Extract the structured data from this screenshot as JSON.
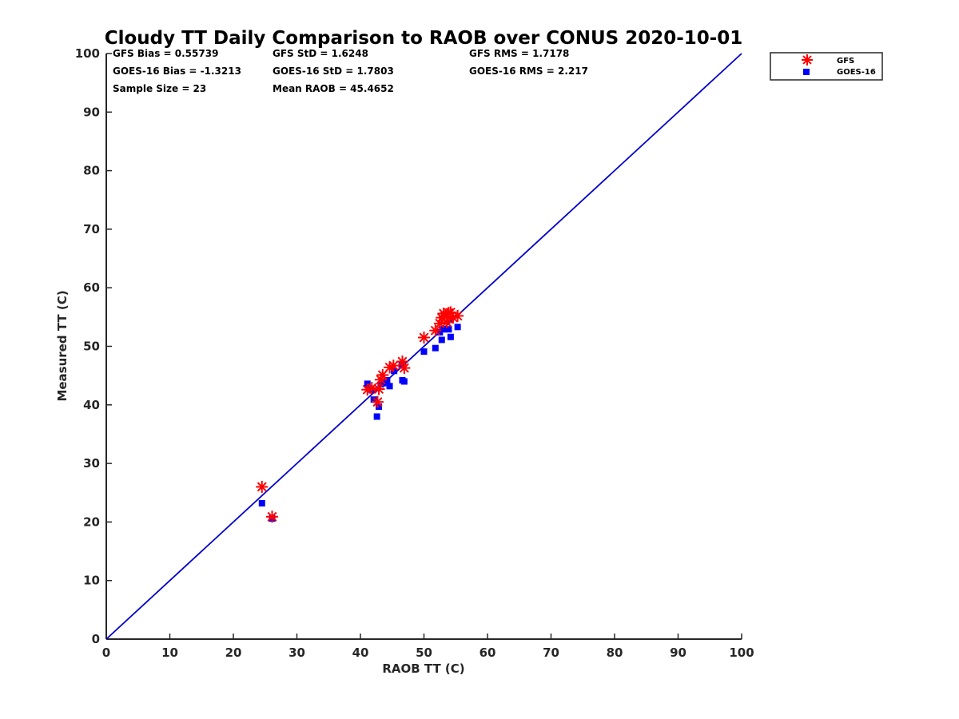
{
  "chart_data": {
    "type": "scatter",
    "title": "Cloudy TT Daily Comparison to RAOB over CONUS 2020-10-01",
    "xlabel": "RAOB TT (C)",
    "ylabel": "Measured TT (C)",
    "xlim": [
      0,
      100
    ],
    "ylim": [
      0,
      100
    ],
    "x_ticks": [
      "0",
      "10",
      "20",
      "30",
      "40",
      "50",
      "60",
      "70",
      "80",
      "90",
      "100"
    ],
    "y_ticks": [
      "0",
      "10",
      "20",
      "30",
      "40",
      "50",
      "60",
      "70",
      "80",
      "90",
      "100"
    ],
    "grid": false,
    "legend_position": "top-right outside",
    "reference_line": {
      "x": [
        0,
        100
      ],
      "y": [
        0,
        100
      ],
      "color": "#0000cc"
    },
    "stats": {
      "gfs_bias": "GFS Bias = 0.55739",
      "gfs_std": "GFS StD = 1.6248",
      "gfs_rms": "GFS RMS = 1.7178",
      "goes_bias": "GOES-16 Bias = -1.3213",
      "goes_std": "GOES-16 StD = 1.7803",
      "goes_rms": "GOES-16 RMS = 2.217",
      "sample_size": "Sample Size = 23",
      "mean_raob": "Mean RAOB = 45.4652"
    },
    "series": [
      {
        "name": "GFS",
        "marker": "asterisk",
        "color": "#ff0000",
        "x": [
          24.5,
          26.1,
          41.1,
          42.7,
          42.9,
          43.2,
          43.5,
          44.6,
          45.2,
          46.6,
          46.9,
          50.0,
          51.8,
          52.5,
          52.8,
          53.1,
          53.3,
          53.6,
          53.9,
          54.2,
          54.6,
          55.3,
          41.8
        ],
        "y": [
          26.0,
          20.9,
          42.6,
          40.5,
          42.7,
          44.3,
          45.1,
          46.4,
          46.7,
          47.4,
          46.3,
          51.5,
          52.7,
          53.9,
          54.9,
          55.6,
          55.1,
          54.1,
          55.7,
          55.8,
          54.9,
          55.2,
          42.9
        ]
      },
      {
        "name": "GOES-16",
        "marker": "square",
        "color": "#0000ff",
        "x": [
          24.5,
          26.1,
          41.1,
          41.8,
          42.1,
          42.6,
          42.9,
          43.2,
          43.6,
          44.2,
          44.6,
          45.3,
          46.5,
          46.6,
          46.9,
          50.0,
          51.8,
          52.5,
          52.8,
          53.1,
          53.9,
          54.2,
          55.3
        ],
        "y": [
          23.2,
          20.6,
          43.6,
          42.5,
          40.9,
          38.0,
          39.7,
          43.5,
          43.7,
          44.2,
          43.2,
          45.8,
          47.0,
          44.2,
          44.0,
          49.1,
          49.7,
          52.4,
          51.1,
          52.9,
          52.9,
          51.6,
          53.3
        ]
      }
    ]
  }
}
